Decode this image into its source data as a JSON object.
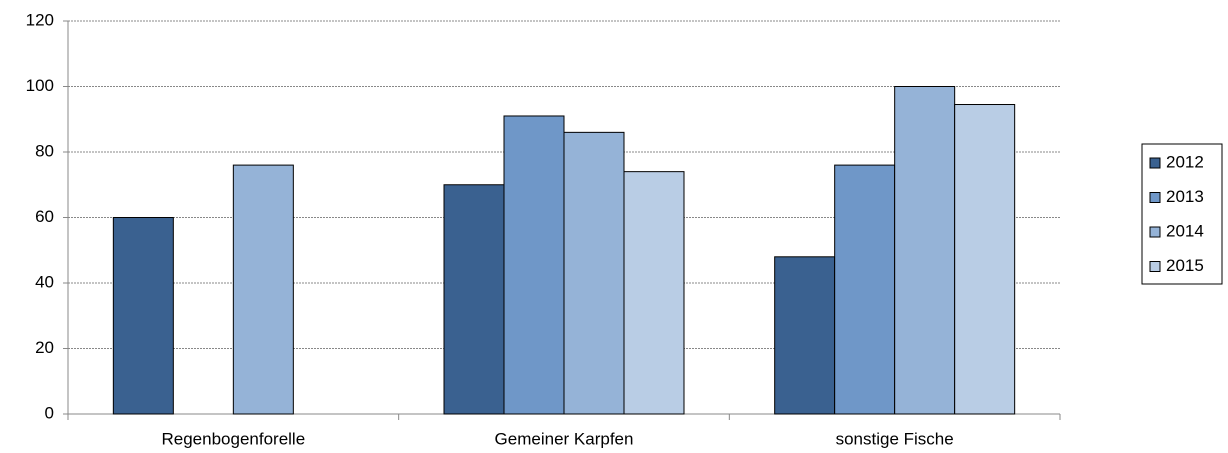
{
  "chart_data": {
    "type": "bar",
    "categories": [
      "Regenbogenforelle",
      "Gemeiner Karpfen",
      "sonstige Fische"
    ],
    "series": [
      {
        "name": "2012",
        "color": "#3a6190",
        "values": [
          60,
          70,
          48
        ]
      },
      {
        "name": "2013",
        "color": "#6f97c8",
        "values": [
          null,
          91,
          76
        ]
      },
      {
        "name": "2014",
        "color": "#95b3d7",
        "values": [
          76,
          86,
          100
        ]
      },
      {
        "name": "2015",
        "color": "#b9cde5",
        "values": [
          null,
          74,
          94.5
        ]
      }
    ],
    "ylim": [
      0,
      120
    ],
    "yticks": [
      0,
      20,
      40,
      60,
      80,
      100,
      120
    ],
    "grid": true,
    "legend": "right"
  }
}
